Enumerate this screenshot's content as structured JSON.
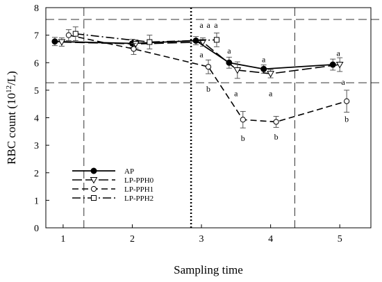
{
  "chart_data": {
    "type": "line",
    "xlabel": "Sampling time",
    "ylabel_main": "RBC count (10",
    "ylabel_sup": "12",
    "ylabel_tail": "/L)",
    "xlim": [
      0.75,
      5.45
    ],
    "ylim": [
      0,
      8
    ],
    "xticks": [
      1,
      2,
      3,
      4,
      5
    ],
    "yticks": [
      0,
      1,
      2,
      3,
      4,
      5,
      6,
      7,
      8
    ],
    "reference_lines": {
      "horizontal_dashed": [
        7.57,
        5.27
      ],
      "vertical_dashed": [
        1.3,
        4.35
      ],
      "vertical_dotted": [
        2.85
      ]
    },
    "legend": {
      "position": "lower-left"
    },
    "series": [
      {
        "name": "AP",
        "style": "solid",
        "marker": "filled-circle",
        "x": [
          0.88,
          2.0,
          2.92,
          3.4,
          3.9,
          4.9
        ],
        "y": [
          6.77,
          6.7,
          6.8,
          6.0,
          5.77,
          5.93
        ],
        "err": [
          0.15,
          0.15,
          0.15,
          0.2,
          0.15,
          0.2
        ]
      },
      {
        "name": "LP-PPH0",
        "style": "longdash",
        "marker": "triangle-down",
        "x": [
          0.98,
          2.05,
          3.02,
          3.52,
          4.0,
          5.0
        ],
        "y": [
          6.75,
          6.68,
          6.75,
          5.73,
          5.6,
          5.93
        ],
        "err": [
          0.15,
          0.15,
          0.15,
          0.3,
          0.15,
          0.25
        ]
      },
      {
        "name": "LP-PPH1",
        "style": "dash",
        "marker": "open-circle",
        "x": [
          1.08,
          2.02,
          3.1,
          3.6,
          4.08,
          5.1
        ],
        "y": [
          7.0,
          6.5,
          5.85,
          3.93,
          3.85,
          4.6
        ],
        "err": [
          0.2,
          0.2,
          0.25,
          0.3,
          0.2,
          0.4
        ]
      },
      {
        "name": "LP-PPH2",
        "style": "dashdot",
        "marker": "open-square",
        "x": [
          1.18,
          2.25,
          3.22
        ],
        "y": [
          7.05,
          6.75,
          6.83
        ],
        "err": [
          0.25,
          0.25,
          0.25
        ]
      }
    ],
    "annotations": [
      {
        "text": "a",
        "x": 3.0,
        "y": 7.37
      },
      {
        "text": "a",
        "x": 3.1,
        "y": 7.37
      },
      {
        "text": "a",
        "x": 3.21,
        "y": 7.37
      },
      {
        "text": "a",
        "x": 3.0,
        "y": 6.3
      },
      {
        "text": "b",
        "x": 3.1,
        "y": 5.05
      },
      {
        "text": "a",
        "x": 3.4,
        "y": 6.43
      },
      {
        "text": "a",
        "x": 3.5,
        "y": 4.88
      },
      {
        "text": "b",
        "x": 3.6,
        "y": 3.25
      },
      {
        "text": "a",
        "x": 3.9,
        "y": 6.12
      },
      {
        "text": "a",
        "x": 4.0,
        "y": 4.88
      },
      {
        "text": "b",
        "x": 4.08,
        "y": 3.3
      },
      {
        "text": "a",
        "x": 4.98,
        "y": 6.35
      },
      {
        "text": "a",
        "x": 5.05,
        "y": 5.3
      },
      {
        "text": "b",
        "x": 5.1,
        "y": 3.95
      }
    ]
  }
}
